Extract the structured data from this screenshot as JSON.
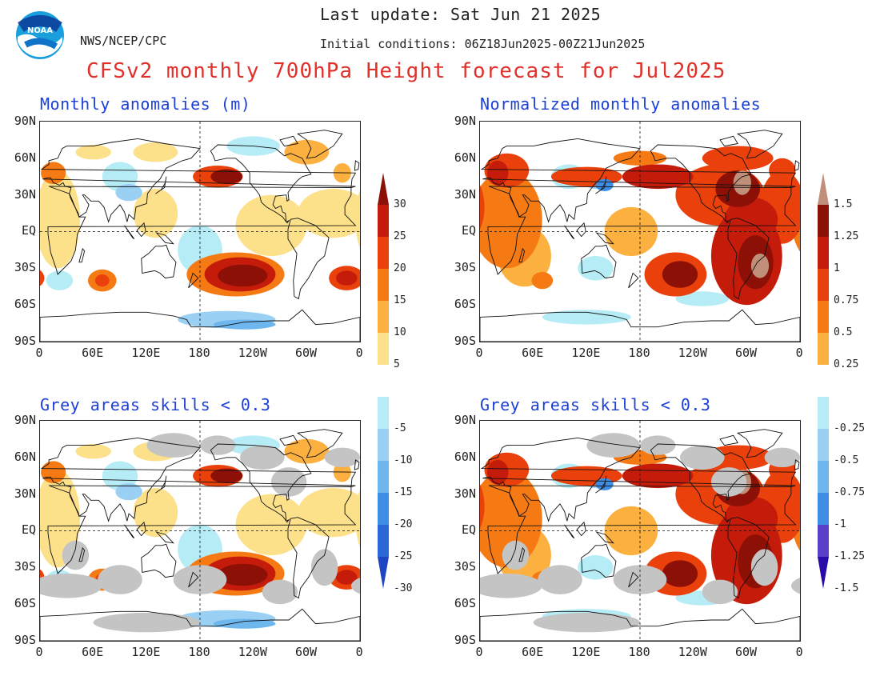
{
  "header": {
    "last_update": "Last update: Sat Jun 21 2025",
    "org": "NWS/NCEP/CPC",
    "initial_conditions": "Initial conditions: 06Z18Jun2025-00Z21Jun2025",
    "title": "CFSv2 monthly 700hPa Height forecast for Jul2025",
    "logo_text": "NOAA"
  },
  "panels": {
    "top_left_title": "Monthly anomalies (m)",
    "top_right_title": "Normalized monthly anomalies",
    "bottom_left_title": "Grey areas skills < 0.3",
    "bottom_right_title": "Grey areas skills < 0.3"
  },
  "axes": {
    "lat_labels": [
      "90N",
      "60N",
      "30N",
      "EQ",
      "30S",
      "60S",
      "90S"
    ],
    "lon_labels": [
      "0",
      "60E",
      "120E",
      "180",
      "120W",
      "60W",
      "0"
    ]
  },
  "colorbar_left": {
    "positive": [
      "30",
      "25",
      "20",
      "15",
      "10",
      "5"
    ],
    "negative": [
      "-5",
      "-10",
      "-15",
      "-20",
      "-25",
      "-30"
    ]
  },
  "colorbar_right": {
    "positive": [
      "1.5",
      "1.25",
      "1",
      "0.75",
      "0.5",
      "0.25"
    ],
    "negative": [
      "-0.25",
      "-0.5",
      "-0.75",
      "-1",
      "-1.25",
      "-1.5"
    ]
  },
  "colors": {
    "pos": [
      "#fde08a",
      "#fbb040",
      "#f67a14",
      "#e9400c",
      "#c51b0b",
      "#8c1006"
    ],
    "pos_extra": [
      "#bf8f7a",
      "#7a4a30"
    ],
    "neg": [
      "#b6ecf6",
      "#9ad0f4",
      "#6db6ee",
      "#3d8ee4",
      "#2b67d6",
      "#1e45c2"
    ],
    "neg_extra": [
      "#5a3fc8",
      "#2a0aa8"
    ],
    "grey": "#c4c4c4",
    "title_red": "#e0302a",
    "panel_blue": "#1b3fd8"
  }
}
